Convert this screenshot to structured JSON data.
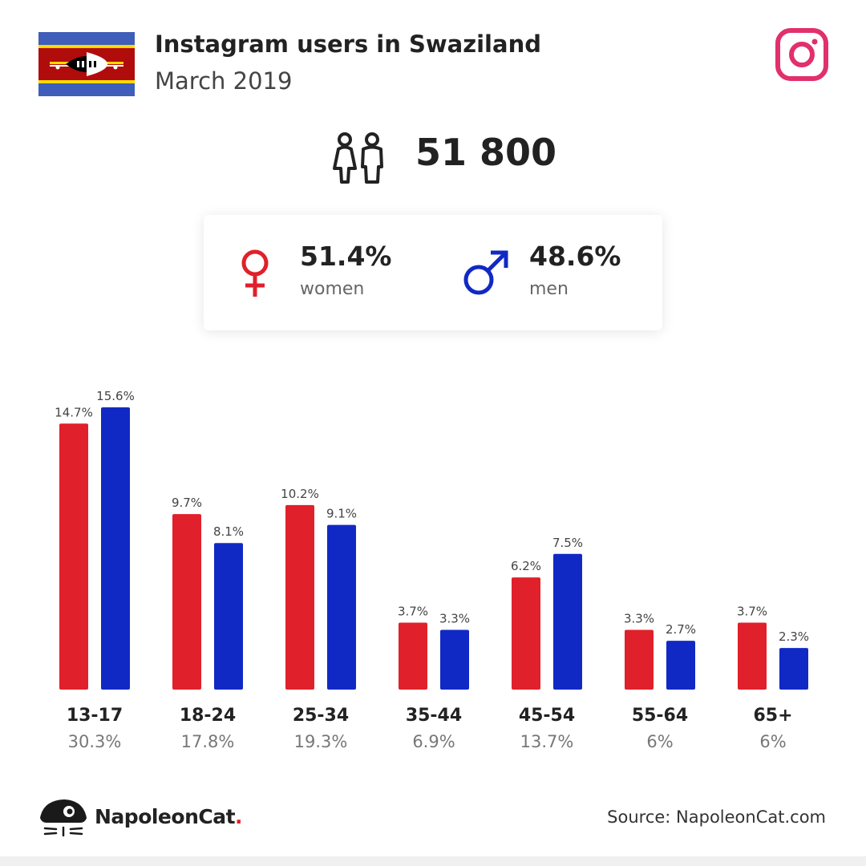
{
  "header": {
    "title": "Instagram users in Swaziland",
    "subtitle": "March 2019"
  },
  "total_users": "51 800",
  "gender": {
    "women": {
      "pct": "51.4%",
      "label": "women"
    },
    "men": {
      "pct": "48.6%",
      "label": "men"
    }
  },
  "colors": {
    "women": "#e0202a",
    "men": "#1129c4",
    "instagram": "#e1306c"
  },
  "chart_data": {
    "type": "bar",
    "categories": [
      "13-17",
      "18-24",
      "25-34",
      "35-44",
      "45-54",
      "55-64",
      "65+"
    ],
    "category_totals": [
      "30.3%",
      "17.8%",
      "19.3%",
      "6.9%",
      "13.7%",
      "6%",
      "6%"
    ],
    "series": [
      {
        "key": "women",
        "values": [
          14.7,
          9.7,
          10.2,
          3.7,
          6.2,
          3.3,
          3.7
        ],
        "labels": [
          "14.7%",
          "9.7%",
          "10.2%",
          "3.7%",
          "6.2%",
          "3.3%",
          "3.7%"
        ]
      },
      {
        "key": "men",
        "values": [
          15.6,
          8.1,
          9.1,
          3.3,
          7.5,
          2.7,
          2.3
        ],
        "labels": [
          "15.6%",
          "8.1%",
          "9.1%",
          "3.3%",
          "7.5%",
          "2.7%",
          "2.3%"
        ]
      }
    ],
    "ylim": [
      0,
      15.6
    ],
    "grid": false
  },
  "footer": {
    "brand": "NapoleonCat",
    "brand_dot": ".",
    "source": "Source: NapoleonCat.com"
  }
}
